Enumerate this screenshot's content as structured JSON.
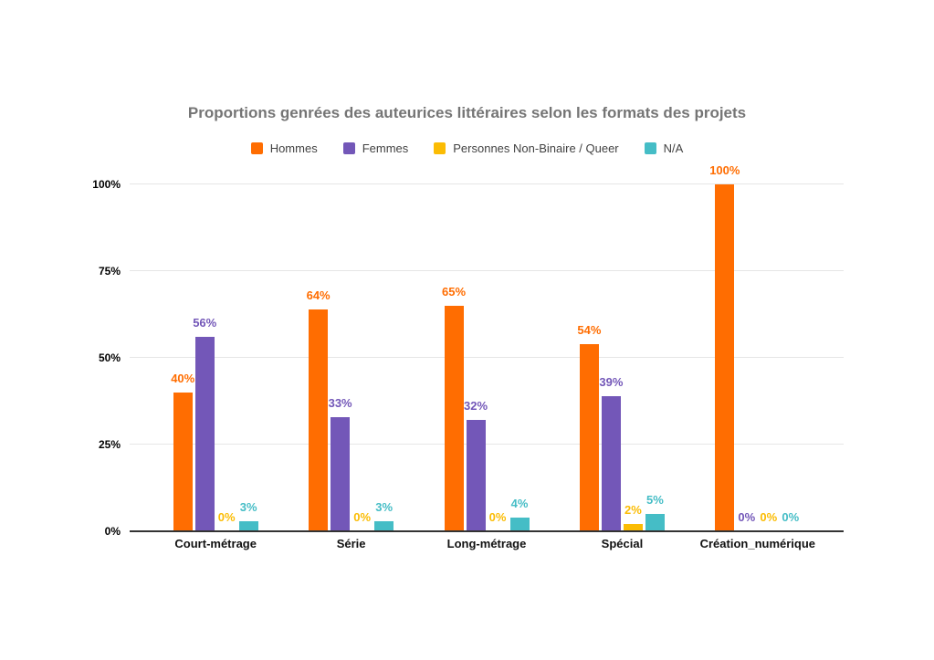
{
  "chart_data": {
    "type": "bar",
    "title": "Proportions genrées des auteurices littéraires selon les formats des projets",
    "categories": [
      "Court-métrage",
      "Série",
      "Long-métrage",
      "Spécial",
      "Création_numérique"
    ],
    "series": [
      {
        "name": "Hommes",
        "color": "#FF6D01",
        "values": [
          40,
          64,
          65,
          54,
          100
        ]
      },
      {
        "name": "Femmes",
        "color": "#7357B8",
        "values": [
          56,
          33,
          32,
          39,
          0
        ]
      },
      {
        "name": "Personnes Non-Binaire / Queer",
        "color": "#FBBC04",
        "values": [
          0,
          0,
          0,
          2,
          0
        ]
      },
      {
        "name": "N/A",
        "color": "#45BDC6",
        "values": [
          3,
          3,
          4,
          5,
          0
        ]
      }
    ],
    "value_label_suffix": "%",
    "xlabel": "",
    "ylabel": "",
    "ylim": [
      0,
      100
    ],
    "yticks": [
      0,
      25,
      50,
      75,
      100
    ],
    "ytick_labels": [
      "0%",
      "25%",
      "50%",
      "75%",
      "100%"
    ],
    "grid": true,
    "legend_position": "top",
    "colors": {
      "title": "#757575",
      "axis_tick_labels": "#000000",
      "legend_text": "#424242",
      "gridline": "#E6E6E6",
      "axis_line": "#333333",
      "background": "#FFFFFF"
    }
  }
}
